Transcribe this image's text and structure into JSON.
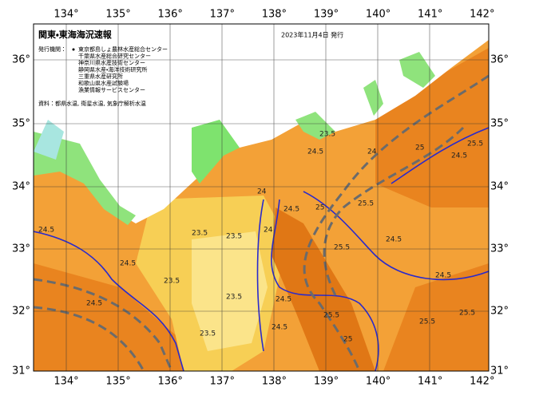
{
  "header": {
    "title": "関東・東海海況速報",
    "date": "2023年11月4日 発行"
  },
  "issuers": {
    "label": "発行機関：",
    "items": [
      "東京都島しょ農林水産総合センター",
      "千葉県水産総合研究センター",
      "神奈川県水産技術センター",
      "静岡県水産・海洋技術研究所",
      "三重県水産研究所",
      "和歌山県水産試験場",
      "漁業情報サービスセンター"
    ]
  },
  "source": "資料：都県水温, 衛星水温, 気象庁解析水温",
  "longitude_labels": [
    "134°",
    "135°",
    "136°",
    "137°",
    "138°",
    "139°",
    "140°",
    "141°",
    "142°"
  ],
  "latitude_labels": [
    "36°",
    "35°",
    "34°",
    "33°",
    "32°",
    "31°"
  ],
  "contour_labels": [
    "23.5",
    "24.5",
    "24",
    "24.5",
    "24.5",
    "23.5",
    "23.5",
    "23.5",
    "23.5",
    "24.5",
    "24",
    "24.5",
    "25",
    "25.5",
    "25.5",
    "24.5",
    "25.5",
    "25.5",
    "24",
    "24.5",
    "25",
    "25.5",
    "24.5",
    "24.5",
    "25.5",
    "25",
    "24.5",
    "23.5"
  ]
}
